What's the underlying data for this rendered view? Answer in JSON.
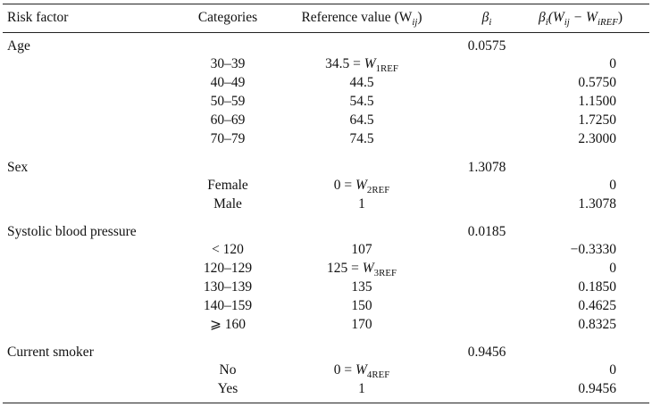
{
  "header": {
    "risk_factor": "Risk factor",
    "categories": "Categories",
    "reference_value": "Reference value (W",
    "reference_sub": "ij",
    "reference_close": ")",
    "beta": "β",
    "beta_sub": "i",
    "diff_beta": "β",
    "diff_beta_sub": "i",
    "diff_open": "(W",
    "diff_w_sub": "ij",
    "diff_minus": " − W",
    "diff_ref_sub": "iREF",
    "diff_close": ")"
  },
  "groups": [
    {
      "factor": "Age",
      "beta": "0.0575",
      "rows": [
        {
          "category": "30–39",
          "ref": "34.5 = W",
          "ref_sub": "1REF",
          "diff": "0"
        },
        {
          "category": "40–49",
          "ref": "44.5",
          "diff": "0.5750"
        },
        {
          "category": "50–59",
          "ref": "54.5",
          "diff": "1.1500"
        },
        {
          "category": "60–69",
          "ref": "64.5",
          "diff": "1.7250"
        },
        {
          "category": "70–79",
          "ref": "74.5",
          "diff": "2.3000"
        }
      ]
    },
    {
      "factor": "Sex",
      "beta": "1.3078",
      "rows": [
        {
          "category": "Female",
          "ref": "0 = W",
          "ref_sub": "2REF",
          "diff": "0"
        },
        {
          "category": "Male",
          "ref": "1",
          "diff": "1.3078"
        }
      ]
    },
    {
      "factor": "Systolic blood pressure",
      "beta": "0.0185",
      "rows": [
        {
          "category": "< 120",
          "ref": "107",
          "diff": "−0.3330"
        },
        {
          "category": "120–129",
          "ref": "125 = W",
          "ref_sub": "3REF",
          "diff": "0"
        },
        {
          "category": "130–139",
          "ref": "135",
          "diff": "0.1850"
        },
        {
          "category": "140–159",
          "ref": "150",
          "diff": "0.4625"
        },
        {
          "category": "⩾ 160",
          "ref": "170",
          "diff": "0.8325"
        }
      ]
    },
    {
      "factor": "Current smoker",
      "beta": "0.9456",
      "rows": [
        {
          "category": "No",
          "ref": "0 = W",
          "ref_sub": "4REF",
          "diff": "0"
        },
        {
          "category": "Yes",
          "ref": "1",
          "diff": "0.9456"
        }
      ]
    }
  ]
}
